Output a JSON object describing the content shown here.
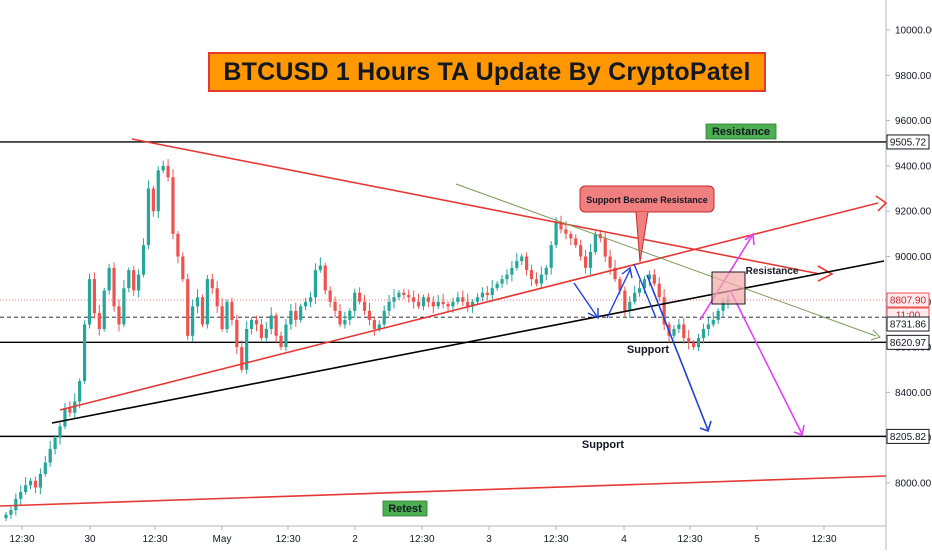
{
  "title": "BTCUSD 1 Hours TA Update By CryptoPatel",
  "annotations": {
    "resistance_top": "Resistance",
    "support_callout": "Support Became Resistance",
    "resistance_right": "Resistance",
    "support_mid": "Support",
    "support_low": "Support",
    "retest": "Retest"
  },
  "colors": {
    "up": "#26a69a",
    "down": "#ef5350",
    "trend_red": "#e53935",
    "trend_black": "#000000",
    "trend_green": "#7b9a5a",
    "arrow_blue": "#1e3fd6",
    "arrow_magenta": "#e040fb",
    "label_green": "#4caf50",
    "callout_fill": "#f08080"
  },
  "chart_data": {
    "type": "candlestick",
    "symbol": "BTCUSD",
    "timeframe": "1h",
    "ylim": [
      7850,
      10100
    ],
    "y_ticks": [
      8000,
      8200,
      8400,
      8600,
      8800,
      9000,
      9200,
      9400,
      9600,
      9800,
      10000
    ],
    "x_ticks": [
      "12:30",
      "30",
      "12:30",
      "May",
      "12:30",
      "2",
      "12:30",
      "3",
      "12:30",
      "4",
      "12:30",
      "5",
      "12:30"
    ],
    "price_tags": {
      "resistance": "9505.72",
      "last_price": "8807.90",
      "countdown": "11:00",
      "dotted_level": "8731.86",
      "support": "8620.97",
      "low_support": "8205.82"
    },
    "levels": {
      "resistance": 9505.72,
      "support": 8620.97,
      "low_support": 8205.82,
      "last_price": 8807.9,
      "dotted_level": 8731.86
    },
    "candles_close": [
      7860,
      7880,
      7930,
      7960,
      7990,
      8010,
      7980,
      8040,
      8090,
      8150,
      8200,
      8250,
      8330,
      8310,
      8360,
      8450,
      8700,
      8900,
      8750,
      8680,
      8850,
      8950,
      8780,
      8700,
      8860,
      8940,
      8850,
      8920,
      9050,
      9300,
      9200,
      9380,
      9400,
      9350,
      9100,
      9000,
      8900,
      8650,
      8780,
      8820,
      8700,
      8900,
      8860,
      8780,
      8680,
      8800,
      8720,
      8600,
      8500,
      8680,
      8720,
      8700,
      8640,
      8680,
      8740,
      8650,
      8600,
      8700,
      8760,
      8720,
      8780,
      8800,
      8820,
      8940,
      8960,
      8850,
      8800,
      8760,
      8700,
      8720,
      8760,
      8840,
      8800,
      8760,
      8720,
      8680,
      8700,
      8760,
      8800,
      8820,
      8840,
      8830,
      8820,
      8800,
      8780,
      8820,
      8800,
      8780,
      8800,
      8790,
      8780,
      8800,
      8820,
      8800,
      8780,
      8800,
      8820,
      8840,
      8830,
      8860,
      8880,
      8900,
      8920,
      8950,
      8980,
      9000,
      8940,
      8900,
      8880,
      8920,
      8950,
      9050,
      9150,
      9120,
      9100,
      9080,
      9050,
      9000,
      8950,
      9020,
      9100,
      9080,
      9000,
      8950,
      8900,
      8850,
      8760,
      8800,
      8840,
      8860,
      8900,
      8920,
      8880,
      8820,
      8700,
      8650,
      8680,
      8700,
      8640,
      8620,
      8600,
      8640,
      8680,
      8700,
      8720,
      8760,
      8800,
      8810
    ]
  }
}
